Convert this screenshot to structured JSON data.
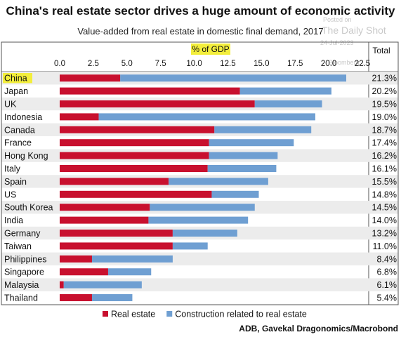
{
  "title": "China's real estate sector drives a huge amount of economic activity",
  "subtitle": "Value-added from real estate in domestic final demand, 2017",
  "watermark": {
    "line1": "Posted on",
    "line2": "The Daily Shot",
    "line3": "24-Jul-2023",
    "line4": "Bloomberg, ..."
  },
  "source": "ADB, Gavekal Dragonomics/Macrobond",
  "chart_data": {
    "type": "bar",
    "orientation": "horizontal",
    "stacked": true,
    "axis_label": "% of GDP",
    "total_label": "Total",
    "ticks": [
      "0.0",
      "2.5",
      "5.0",
      "7.5",
      "10.0",
      "12.5",
      "15.0",
      "17.5",
      "20.0",
      "22.5"
    ],
    "xlim": [
      0,
      22.5
    ],
    "highlight": "China",
    "categories": [
      "China",
      "Japan",
      "UK",
      "Indonesia",
      "Canada",
      "France",
      "Hong Kong",
      "Italy",
      "Spain",
      "US",
      "South Korea",
      "India",
      "Germany",
      "Taiwan",
      "Philippines",
      "Singapore",
      "Malaysia",
      "Thailand"
    ],
    "totals": [
      "21.3%",
      "20.2%",
      "19.5%",
      "19.0%",
      "18.7%",
      "17.4%",
      "16.2%",
      "16.1%",
      "15.5%",
      "14.8%",
      "14.5%",
      "14.0%",
      "13.2%",
      "11.0%",
      "8.4%",
      "6.8%",
      "6.1%",
      "5.4%"
    ],
    "series": [
      {
        "name": "Real estate",
        "color": "#c8102e",
        "values": [
          4.5,
          13.4,
          14.5,
          2.9,
          11.5,
          11.1,
          11.1,
          11.0,
          8.1,
          11.3,
          6.7,
          6.6,
          8.4,
          8.4,
          2.4,
          3.6,
          0.3,
          2.4
        ]
      },
      {
        "name": "Construction related to real estate",
        "color": "#6f9fd2",
        "values": [
          16.8,
          6.8,
          5.0,
          16.1,
          7.2,
          6.3,
          5.1,
          5.1,
          7.4,
          3.5,
          7.8,
          7.4,
          4.8,
          2.6,
          6.0,
          3.2,
          5.8,
          3.0
        ]
      }
    ]
  }
}
